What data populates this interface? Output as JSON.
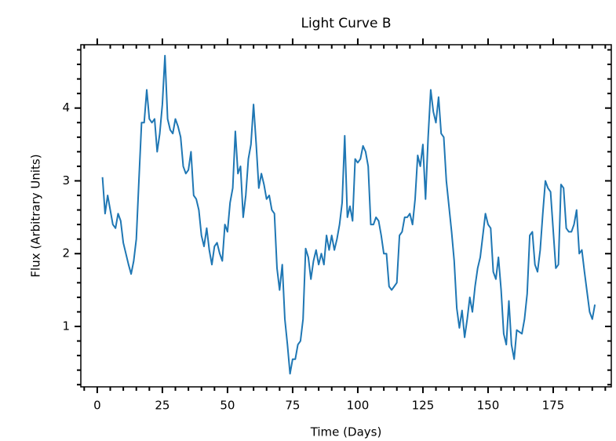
{
  "chart_data": {
    "type": "line",
    "title": "Light Curve B",
    "xlabel": "Time (Days)",
    "ylabel": "Flux (Arbitrary Units)",
    "series": [
      {
        "color": "#1f77b4",
        "x": [
          2,
          3,
          4,
          5,
          6,
          7,
          8,
          9,
          10,
          12,
          13,
          14,
          15,
          16,
          17,
          18,
          19,
          20,
          21,
          22,
          23,
          24,
          25,
          26,
          27,
          28,
          29,
          30,
          31,
          32,
          33,
          34,
          35,
          36,
          37,
          38,
          39,
          40,
          41,
          42,
          43,
          44,
          45,
          46,
          47,
          48,
          49,
          50,
          51,
          52,
          53,
          54,
          55,
          56,
          57,
          58,
          59,
          60,
          61,
          62,
          63,
          64,
          65,
          66,
          67,
          68,
          69,
          70,
          71,
          72,
          73,
          74,
          75,
          76,
          77,
          78,
          79,
          80,
          81,
          82,
          83,
          84,
          85,
          86,
          87,
          88,
          89,
          90,
          91,
          92,
          93,
          94,
          95,
          96,
          97,
          98,
          99,
          100,
          101,
          102,
          103,
          104,
          105,
          106,
          107,
          108,
          109,
          110,
          111,
          112,
          113,
          114,
          115,
          116,
          117,
          118,
          119,
          120,
          121,
          122,
          123,
          124,
          125,
          126,
          127,
          128,
          129,
          130,
          131,
          132,
          133,
          134,
          136,
          137,
          138,
          139,
          140,
          141,
          142,
          143,
          144,
          145,
          146,
          147,
          149,
          150,
          151,
          152,
          153,
          154,
          155,
          156,
          157,
          158,
          159,
          160,
          161,
          163,
          164,
          165,
          166,
          167,
          168,
          169,
          170,
          171,
          172,
          173,
          174,
          176,
          177,
          178,
          179,
          180,
          181,
          182,
          183,
          184,
          185,
          186,
          187,
          189,
          190,
          191
        ],
        "values": [
          3.05,
          2.55,
          2.8,
          2.6,
          2.4,
          2.35,
          2.55,
          2.45,
          2.15,
          1.85,
          1.72,
          1.9,
          2.2,
          3.0,
          3.8,
          3.8,
          4.25,
          3.85,
          3.8,
          3.85,
          3.4,
          3.65,
          4.05,
          4.72,
          3.85,
          3.7,
          3.65,
          3.85,
          3.75,
          3.6,
          3.2,
          3.1,
          3.15,
          3.4,
          2.8,
          2.75,
          2.6,
          2.25,
          2.1,
          2.35,
          2.05,
          1.85,
          2.1,
          2.15,
          2.0,
          1.9,
          2.4,
          2.3,
          2.7,
          2.9,
          3.68,
          3.1,
          3.2,
          2.5,
          2.8,
          3.3,
          3.5,
          4.05,
          3.5,
          2.9,
          3.1,
          2.95,
          2.75,
          2.8,
          2.6,
          2.55,
          1.8,
          1.5,
          1.85,
          1.1,
          0.75,
          0.35,
          0.55,
          0.55,
          0.75,
          0.8,
          1.1,
          2.07,
          1.95,
          1.65,
          1.9,
          2.05,
          1.85,
          2.0,
          1.85,
          2.25,
          2.05,
          2.25,
          2.05,
          2.2,
          2.4,
          2.7,
          3.62,
          2.5,
          2.65,
          2.45,
          3.3,
          3.25,
          3.3,
          3.48,
          3.4,
          3.2,
          2.4,
          2.4,
          2.5,
          2.45,
          2.25,
          2.0,
          2.0,
          1.55,
          1.5,
          1.55,
          1.6,
          2.25,
          2.3,
          2.5,
          2.5,
          2.55,
          2.4,
          2.75,
          3.35,
          3.2,
          3.5,
          2.75,
          3.6,
          4.25,
          3.95,
          3.8,
          4.15,
          3.65,
          3.6,
          3.0,
          2.3,
          1.9,
          1.25,
          0.98,
          1.22,
          0.85,
          1.1,
          1.4,
          1.2,
          1.55,
          1.8,
          1.95,
          2.55,
          2.4,
          2.35,
          1.75,
          1.65,
          1.95,
          1.5,
          0.9,
          0.75,
          1.35,
          0.75,
          0.55,
          0.95,
          0.9,
          1.1,
          1.45,
          2.25,
          2.3,
          1.85,
          1.75,
          2.05,
          2.55,
          3.0,
          2.9,
          2.85,
          1.8,
          1.85,
          2.95,
          2.9,
          2.35,
          2.3,
          2.3,
          2.4,
          2.6,
          2.0,
          2.05,
          1.75,
          1.2,
          1.1,
          1.3
        ]
      }
    ],
    "xlim": [
      -6.3,
      197.3
    ],
    "ylim": [
      0.17,
      4.87
    ],
    "xticks": [
      0,
      25,
      50,
      75,
      100,
      125,
      150,
      175
    ],
    "yticks": [
      1,
      2,
      3,
      4
    ],
    "xminorticks": [
      -5,
      5,
      10,
      15,
      20,
      30,
      35,
      40,
      45,
      55,
      60,
      65,
      70,
      80,
      85,
      90,
      95,
      105,
      110,
      115,
      120,
      130,
      135,
      140,
      145,
      155,
      160,
      165,
      170,
      180,
      185,
      190,
      195
    ],
    "yminorticks": [
      0.2,
      0.4,
      0.6,
      0.8,
      1.2,
      1.4,
      1.6,
      1.8,
      2.2,
      2.4,
      2.6,
      2.8,
      3.2,
      3.4,
      3.6,
      3.8,
      4.2,
      4.4,
      4.6,
      4.8
    ]
  }
}
